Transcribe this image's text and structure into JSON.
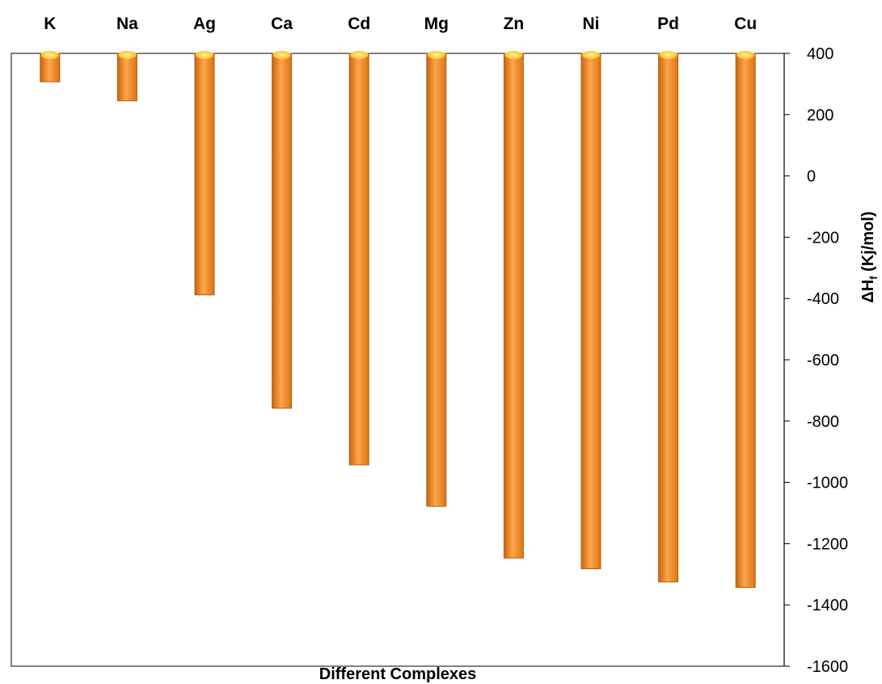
{
  "chart_data": {
    "type": "bar",
    "orientation": "vertical",
    "baseline": 400,
    "categories": [
      "K",
      "Na",
      "Ag",
      "Ca",
      "Cd",
      "Mg",
      "Zn",
      "Ni",
      "Pd",
      "Cu"
    ],
    "series": [
      {
        "values": [
          307,
          245,
          -388,
          -758,
          -943,
          -1078,
          -1247,
          -1282,
          -1325,
          -1343
        ]
      }
    ],
    "title": "",
    "xlabel": "Different Complexes",
    "ylabel": "ΔHf (Kj/mol)",
    "ylabel_parts": {
      "main": "ΔH",
      "sub": "f",
      "unit": " (Kj/mol)"
    },
    "ylim": [
      -1600,
      400
    ],
    "yticks": [
      400,
      200,
      0,
      -200,
      -400,
      -600,
      -800,
      -1000,
      -1200,
      -1400,
      -1600
    ],
    "yaxis_position": "right",
    "category_label_position": "top",
    "grid": false,
    "colors": {
      "bar": "#f08a24",
      "bar_light": "#ffc27a",
      "bar_dark": "#b85e10",
      "cap": "#ffe24a"
    }
  }
}
